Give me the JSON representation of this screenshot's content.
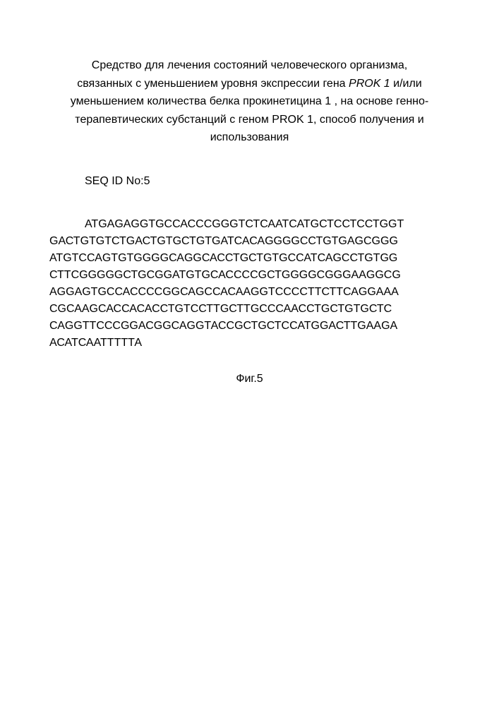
{
  "title": {
    "line1": "Средство для лечения состояний человеческого организма,",
    "line2_pre": "связанных с уменьшением уровня экспрессии гена ",
    "line2_italic": "PROK 1",
    "line2_post": " и/или",
    "line3": "уменьшением количества белка прокинетицина 1  , на основе генно-",
    "line4": "терапевтических субстанций с геном PROK 1, способ получения и",
    "line5": "использования"
  },
  "seq_label": "SEQ ID No:5",
  "sequence": {
    "line1": "АТGАGАGGТGССАСССGGGТСТСААТСАТGСТССТССТGGТ",
    "line2": "GАСТGТGТСТGАСТGТGСТGТGАТСАСАGGGGССТGТGАGСGGG",
    "line3": "АТGТССАGТGТGGGGСАGGСАССТGСТGТGССАТСАGССТGТGG",
    "line4": "СТТСGGGGGСТGСGGАТGТGСАССССGСТGGGGСGGGААGGСG",
    "line5": "АGGАGТGССАССССGGСАGССАСААGGТСССCТТСТТСАGGААА",
    "line6": "СGСААGСАССАСАССТGТССТТGСТТGСССААССТGСТGТGСТС",
    "line7": "САGGТТСССGGАСGGСАGGТАССGСТGСТССАТGGАСТТGААGА",
    "line8": "АСАТСААТТТТТА"
  },
  "figure_label": "Фиг.5",
  "colors": {
    "background": "#ffffff",
    "text": "#000000"
  },
  "typography": {
    "font_family": "Arial, sans-serif",
    "font_size_pt": 16,
    "line_height": 1.5
  }
}
